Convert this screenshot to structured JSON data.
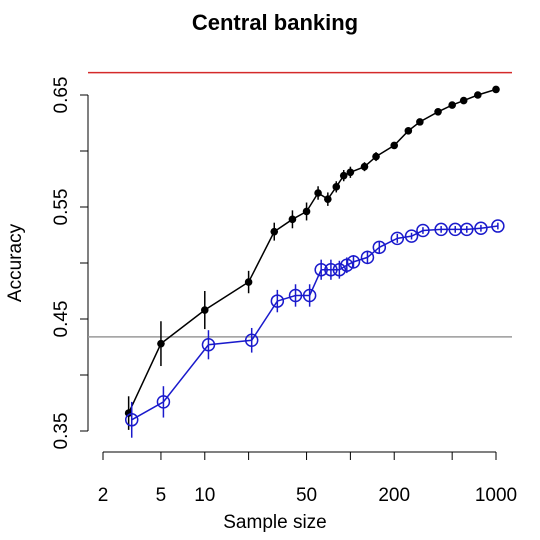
{
  "chart_data": {
    "type": "line",
    "title": "Central banking",
    "x_label": "Sample size",
    "y_label": "Accuracy",
    "x_log": true,
    "xlim": [
      2,
      1000
    ],
    "xticks": [
      2,
      5,
      10,
      20,
      50,
      100,
      200,
      500,
      1000
    ],
    "xtick_labels_shown": [
      2,
      5,
      10,
      50,
      200,
      1000
    ],
    "ylim": [
      0.35,
      0.65
    ],
    "yticks": [
      0.35,
      0.4,
      0.45,
      0.5,
      0.55,
      0.6,
      0.65
    ],
    "ytick_labels_shown": [
      0.35,
      0.45,
      0.55,
      0.65
    ],
    "hlines": [
      {
        "value": 0.67,
        "color": "#d42a2a"
      },
      {
        "value": 0.434,
        "color": "#9a9a9a"
      }
    ],
    "series": [
      {
        "color": "#000000",
        "marker": "filled",
        "x": [
          3,
          5,
          10,
          20,
          30,
          40,
          50,
          60,
          70,
          80,
          90,
          100,
          125,
          150,
          200,
          250,
          300,
          400,
          500,
          600,
          750,
          1000
        ],
        "values": [
          0.366,
          0.428,
          0.458,
          0.483,
          0.528,
          0.539,
          0.546,
          0.5625,
          0.557,
          0.568,
          0.578,
          0.581,
          0.586,
          0.595,
          0.605,
          0.618,
          0.626,
          0.635,
          0.641,
          0.645,
          0.65,
          0.655
        ],
        "errors": [
          0.015,
          0.02,
          0.017,
          0.01,
          0.008,
          0.008,
          0.008,
          0.006,
          0.006,
          0.005,
          0.005,
          0.005,
          0.004,
          0.004,
          0.003,
          0.003,
          0.003,
          0.003,
          0.002,
          0.002,
          0.002,
          0.002
        ]
      },
      {
        "color": "#1a1acc",
        "marker": "open",
        "x": [
          3.15,
          5.2,
          10.6,
          21,
          31.5,
          42,
          52.5,
          63,
          73.5,
          84,
          94.5,
          105,
          131,
          158,
          210,
          263,
          315,
          420,
          525,
          630,
          788,
          1030
        ],
        "values": [
          0.36,
          0.376,
          0.427,
          0.431,
          0.466,
          0.471,
          0.471,
          0.494,
          0.494,
          0.494,
          0.498,
          0.501,
          0.505,
          0.514,
          0.522,
          0.524,
          0.529,
          0.53,
          0.53,
          0.53,
          0.531,
          0.533
        ],
        "errors": [
          0.016,
          0.014,
          0.013,
          0.011,
          0.01,
          0.01,
          0.01,
          0.009,
          0.009,
          0.008,
          0.007,
          0.006,
          0.006,
          0.005,
          0.004,
          0.003,
          0.003,
          0.003,
          0.003,
          0.003,
          0.003,
          0.003
        ]
      }
    ]
  }
}
